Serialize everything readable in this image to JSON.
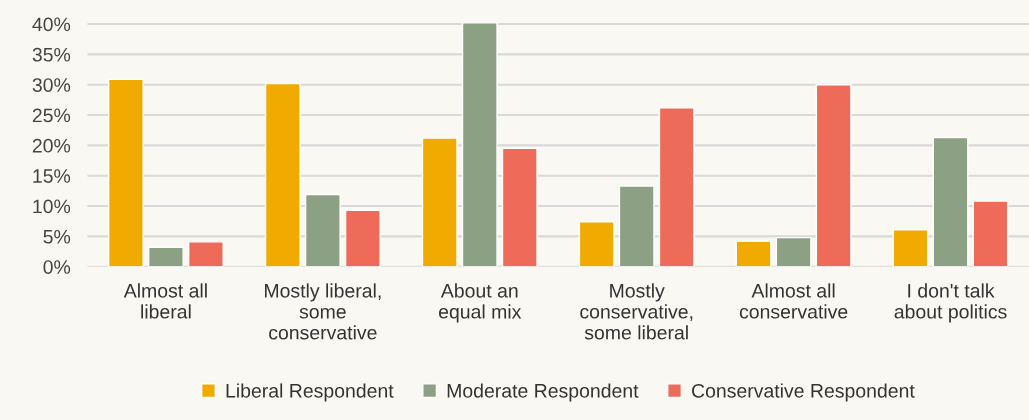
{
  "chart_data": {
    "type": "bar",
    "categories": [
      "Almost all\nliberal",
      "Mostly liberal,\nsome\nconservative",
      "About an\nequal mix",
      "Mostly\nconservative,\nsome liberal",
      "Almost all\nconservative",
      "I don't talk\nabout politics"
    ],
    "series": [
      {
        "name": "Liberal Respondent",
        "color": "#f0aa00",
        "values": [
          30.9,
          30.2,
          21.2,
          7.4,
          4.2,
          6.1
        ]
      },
      {
        "name": "Moderate Respondent",
        "color": "#8ca184",
        "values": [
          3.2,
          11.9,
          40.2,
          13.3,
          4.8,
          21.3
        ]
      },
      {
        "name": "Conservative Respondent",
        "color": "#ee6a59",
        "values": [
          4.1,
          9.3,
          19.5,
          26.2,
          30.0,
          10.8
        ]
      }
    ],
    "ylim": [
      0,
      40.5
    ],
    "yticks": [
      {
        "value": 0,
        "label": "0%"
      },
      {
        "value": 5,
        "label": "5%"
      },
      {
        "value": 10,
        "label": "10%"
      },
      {
        "value": 15,
        "label": "15%"
      },
      {
        "value": 20,
        "label": "20%"
      },
      {
        "value": 25,
        "label": "25%"
      },
      {
        "value": 30,
        "label": "30%"
      },
      {
        "value": 35,
        "label": "35%"
      },
      {
        "value": 40,
        "label": "40%"
      }
    ],
    "grid": "y",
    "legend": "bottom"
  }
}
